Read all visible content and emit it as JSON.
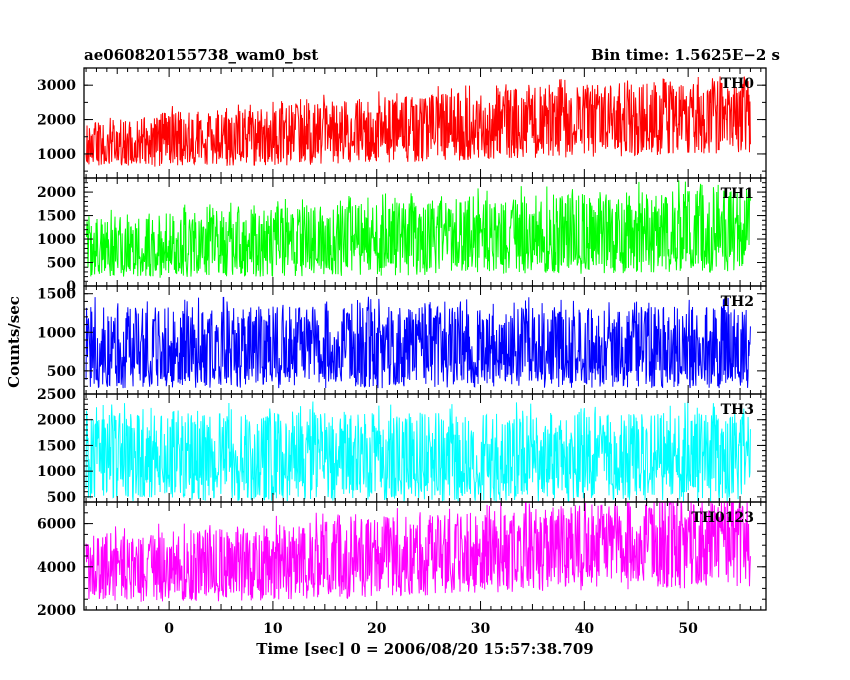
{
  "header": {
    "left": "ae060820155738_wam0_bst",
    "right": "Bin time: 1.5625E−2 s"
  },
  "chart_data": {
    "type": "line",
    "title": "ae060820155738_wam0_bst",
    "subtitle": "Bin time: 1.5625E−2 s",
    "xlabel": "Time [sec] 0 = 2006/08/20 15:57:38.709",
    "ylabel": "Counts/sec",
    "xlim": [
      -8.2,
      57.5
    ],
    "x_ticks": [
      0,
      10,
      20,
      30,
      40,
      50
    ],
    "x_tick_labels": [
      "0",
      "10",
      "20",
      "30",
      "40",
      "50"
    ],
    "data_x_range": [
      -8,
      56
    ],
    "bin_time_sec": 0.015625,
    "grid": false,
    "panels": [
      {
        "name": "TH0",
        "color": "#ff0000",
        "ylim": [
          300,
          3500
        ],
        "y_ticks": [
          1000,
          2000,
          3000
        ],
        "y_tick_labels": [
          "1000",
          "2000",
          "3000"
        ],
        "envelope": {
          "x": [
            -8,
            0,
            10,
            20,
            30,
            40,
            50,
            56
          ],
          "low": [
            700,
            700,
            750,
            850,
            950,
            1050,
            1100,
            1150
          ],
          "mid": [
            1200,
            1300,
            1450,
            1600,
            1800,
            1950,
            2050,
            2100
          ],
          "high": [
            1800,
            2100,
            2300,
            2500,
            2700,
            2900,
            3000,
            3000
          ]
        }
      },
      {
        "name": "TH1",
        "color": "#00ff00",
        "ylim": [
          0,
          2300
        ],
        "y_ticks": [
          0,
          500,
          1000,
          1500,
          2000
        ],
        "y_tick_labels": [
          "0",
          "500",
          "1000",
          "1500",
          "2000"
        ],
        "envelope": {
          "x": [
            -8,
            0,
            10,
            20,
            30,
            40,
            50,
            56
          ],
          "low": [
            250,
            250,
            280,
            300,
            330,
            350,
            380,
            400
          ],
          "mid": [
            700,
            750,
            800,
            850,
            900,
            950,
            1000,
            1000
          ],
          "high": [
            1350,
            1450,
            1550,
            1650,
            1750,
            1850,
            1900,
            1900
          ]
        }
      },
      {
        "name": "TH2",
        "color": "#0000ff",
        "ylim": [
          200,
          1600
        ],
        "y_ticks": [
          500,
          1000,
          1500
        ],
        "y_tick_labels": [
          "500",
          "1000",
          "1500"
        ],
        "envelope": {
          "x": [
            -8,
            0,
            10,
            20,
            30,
            40,
            50,
            56
          ],
          "low": [
            330,
            330,
            330,
            330,
            330,
            330,
            330,
            330
          ],
          "mid": [
            700,
            700,
            700,
            700,
            700,
            700,
            700,
            700
          ],
          "high": [
            1250,
            1250,
            1250,
            1250,
            1250,
            1250,
            1250,
            1250
          ]
        }
      },
      {
        "name": "TH3",
        "color": "#00ffff",
        "ylim": [
          400,
          2500
        ],
        "y_ticks": [
          500,
          1000,
          1500,
          2000,
          2500
        ],
        "y_tick_labels": [
          "500",
          "1000",
          "1500",
          "2000",
          "2500"
        ],
        "envelope": {
          "x": [
            -8,
            0,
            10,
            20,
            30,
            40,
            50,
            56
          ],
          "low": [
            500,
            500,
            500,
            500,
            500,
            500,
            500,
            500
          ],
          "mid": [
            1100,
            1100,
            1100,
            1100,
            1100,
            1100,
            1100,
            1100
          ],
          "high": [
            2000,
            2000,
            2000,
            2000,
            2000,
            2000,
            2000,
            2000
          ]
        }
      },
      {
        "name": "TH0123",
        "color": "#ff00ff",
        "ylim": [
          2000,
          7000
        ],
        "y_ticks": [
          2000,
          4000,
          6000
        ],
        "y_tick_labels": [
          "2000",
          "4000",
          "6000"
        ],
        "envelope": {
          "x": [
            -8,
            0,
            10,
            20,
            30,
            40,
            50,
            56
          ],
          "low": [
            2500,
            2550,
            2650,
            2800,
            3000,
            3150,
            3250,
            3300
          ],
          "mid": [
            3700,
            3800,
            4000,
            4250,
            4550,
            4750,
            4900,
            5000
          ],
          "high": [
            5200,
            5400,
            5700,
            6000,
            6300,
            6600,
            6800,
            6800
          ]
        }
      }
    ]
  }
}
